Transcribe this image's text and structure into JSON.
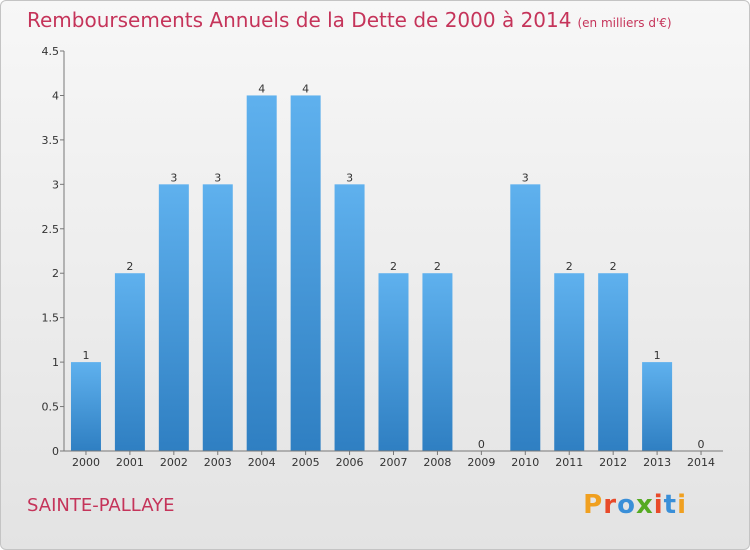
{
  "title": "Remboursements Annuels de la Dette de 2000 à 2014",
  "subtitle": "(en milliers d'€)",
  "place": "SAINTE-PALLAYE",
  "logo": {
    "text": "Proxiti",
    "colors": [
      "#f0a020",
      "#e84a2a",
      "#3a8fd8",
      "#55aa22",
      "#e84a2a",
      "#3a8fd8",
      "#f0a020"
    ]
  },
  "colors": {
    "title": "#c5345a",
    "bar_light": "#5fb1ee",
    "bar_dark": "#2f7fc2"
  },
  "chart_data": {
    "type": "bar",
    "categories": [
      "2000",
      "2001",
      "2002",
      "2003",
      "2004",
      "2005",
      "2006",
      "2007",
      "2008",
      "2009",
      "2010",
      "2011",
      "2012",
      "2013",
      "2014"
    ],
    "values": [
      1,
      2,
      3,
      3,
      4,
      4,
      3,
      2,
      2,
      0,
      3,
      2,
      2,
      1,
      0
    ],
    "data_labels": [
      "1",
      "2",
      "3",
      "3",
      "4",
      "4",
      "3",
      "2",
      "2",
      "0",
      "3",
      "2",
      "2",
      "1",
      "0"
    ],
    "ylim": [
      0,
      4.5
    ],
    "yticks": [
      0,
      0.5,
      1,
      1.5,
      2,
      2.5,
      3,
      3.5,
      4,
      4.5
    ],
    "ytick_labels": [
      "0",
      "0.5",
      "1",
      "1.5",
      "2",
      "2.5",
      "3",
      "3.5",
      "4",
      "4.5"
    ],
    "xlabel": "",
    "ylabel": "",
    "grid": false
  }
}
